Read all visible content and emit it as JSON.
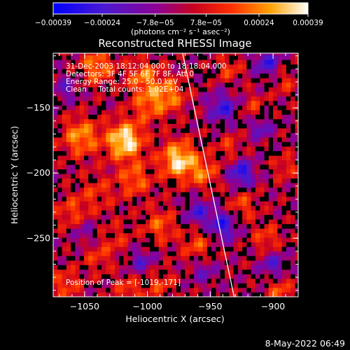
{
  "chart_data": {
    "type": "heatmap",
    "title": "Reconstructed RHESSI Image",
    "xlabel": "Heliocentric X (arcsec)",
    "ylabel": "Heliocentric Y (arcsec)",
    "xlim": [
      -1075,
      -880
    ],
    "ylim": [
      -295,
      -108
    ],
    "x_ticks": [
      -1050,
      -1000,
      -950,
      -900
    ],
    "x_tick_labels": [
      "−1050",
      "−1000",
      "−950",
      "−900"
    ],
    "y_ticks": [
      -150,
      -200,
      -250
    ],
    "y_tick_labels": [
      "−150",
      "−200",
      "−250"
    ],
    "colorbar": {
      "min": -0.00039,
      "max": 0.00039,
      "ticks": [
        -0.00039,
        -0.00024,
        -7.8e-05,
        7.8e-05,
        0.00024,
        0.00039
      ],
      "tick_labels": [
        "−0.00039",
        "−0.00024",
        "−7.8e−05",
        "7.8e−05",
        "0.00024",
        "0.00039"
      ],
      "units_label": "(photons cm⁻² s⁻¹ asec⁻²)",
      "colors": [
        "#0000ff",
        "#5a1ab8",
        "#9a0080",
        "#d00000",
        "#ff5a00",
        "#ffb000",
        "#ffffff"
      ]
    },
    "annotations": [
      "31-Dec-2003 18:12:04.000 to 18:18:04.000",
      "Detectors: 3F 4F 5F 6F 7F 8F, Att 0",
      "Energy Range: 25.0 - 50.0 keV",
      "Clean     Total counts: 1.02E+04"
    ],
    "peak_label": "Position of Peak = [-1019,-171]",
    "peak": [
      -1019,
      -171
    ],
    "limb_line": {
      "x": [
        -972,
        -931
      ],
      "y": [
        -108,
        -295
      ]
    },
    "blobs": [
      {
        "x": -1018,
        "y": -175,
        "v": 0.00039,
        "s": 10
      },
      {
        "x": -975,
        "y": -190,
        "v": 0.00036,
        "s": 10
      },
      {
        "x": -1053,
        "y": -172,
        "v": 0.00026,
        "s": 10
      },
      {
        "x": -1040,
        "y": -118,
        "v": 0.00024,
        "s": 9
      },
      {
        "x": -1003,
        "y": -126,
        "v": 0.00022,
        "s": 9
      },
      {
        "x": -983,
        "y": -140,
        "v": 0.00023,
        "s": 9
      },
      {
        "x": -1000,
        "y": -148,
        "v": 0.00018,
        "s": 9
      },
      {
        "x": -1060,
        "y": -230,
        "v": 0.00015,
        "s": 9
      },
      {
        "x": -1040,
        "y": -215,
        "v": 0.00012,
        "s": 10
      },
      {
        "x": -1010,
        "y": -205,
        "v": 0.0002,
        "s": 9
      },
      {
        "x": -990,
        "y": -240,
        "v": 0.00018,
        "s": 9
      },
      {
        "x": -1025,
        "y": -250,
        "v": 0.0001,
        "s": 9
      },
      {
        "x": -1040,
        "y": -265,
        "v": 0.00012,
        "s": 8
      },
      {
        "x": -1065,
        "y": -285,
        "v": 0.00016,
        "s": 8
      },
      {
        "x": -1015,
        "y": -290,
        "v": 0.00015,
        "s": 8
      },
      {
        "x": -990,
        "y": -285,
        "v": 0.00014,
        "s": 8
      },
      {
        "x": -960,
        "y": -255,
        "v": 0.00016,
        "s": 9
      },
      {
        "x": -955,
        "y": -200,
        "v": 0.00019,
        "s": 8
      },
      {
        "x": -935,
        "y": -180,
        "v": 0.00013,
        "s": 7
      },
      {
        "x": -925,
        "y": -225,
        "v": 0.00016,
        "s": 8
      },
      {
        "x": -905,
        "y": -250,
        "v": 0.00015,
        "s": 8
      },
      {
        "x": -895,
        "y": -290,
        "v": 0.00017,
        "s": 7
      },
      {
        "x": -915,
        "y": -150,
        "v": 0.00012,
        "s": 7
      },
      {
        "x": -935,
        "y": -120,
        "v": 0.00014,
        "s": 7
      },
      {
        "x": -890,
        "y": -130,
        "v": 0.00011,
        "s": 7
      },
      {
        "x": -890,
        "y": -195,
        "v": 0.00012,
        "s": 7
      },
      {
        "x": -940,
        "y": -150,
        "v": -0.00025,
        "s": 8
      },
      {
        "x": -925,
        "y": -200,
        "v": -0.0003,
        "s": 7
      },
      {
        "x": -940,
        "y": -240,
        "v": -0.00028,
        "s": 8
      },
      {
        "x": -905,
        "y": -115,
        "v": -0.00025,
        "s": 7
      },
      {
        "x": -960,
        "y": -230,
        "v": -0.00022,
        "s": 7
      },
      {
        "x": -900,
        "y": -270,
        "v": -0.0002,
        "s": 7
      },
      {
        "x": -1005,
        "y": -268,
        "v": -0.00018,
        "s": 7
      },
      {
        "x": -1065,
        "y": -135,
        "v": -0.00015,
        "s": 7
      },
      {
        "x": -1050,
        "y": -245,
        "v": -0.00012,
        "s": 7
      },
      {
        "x": -910,
        "y": -165,
        "v": -0.0002,
        "s": 6
      },
      {
        "x": -955,
        "y": -275,
        "v": -0.00014,
        "s": 7
      }
    ]
  },
  "footer": {
    "timestamp": "8-May-2022 06:49"
  }
}
